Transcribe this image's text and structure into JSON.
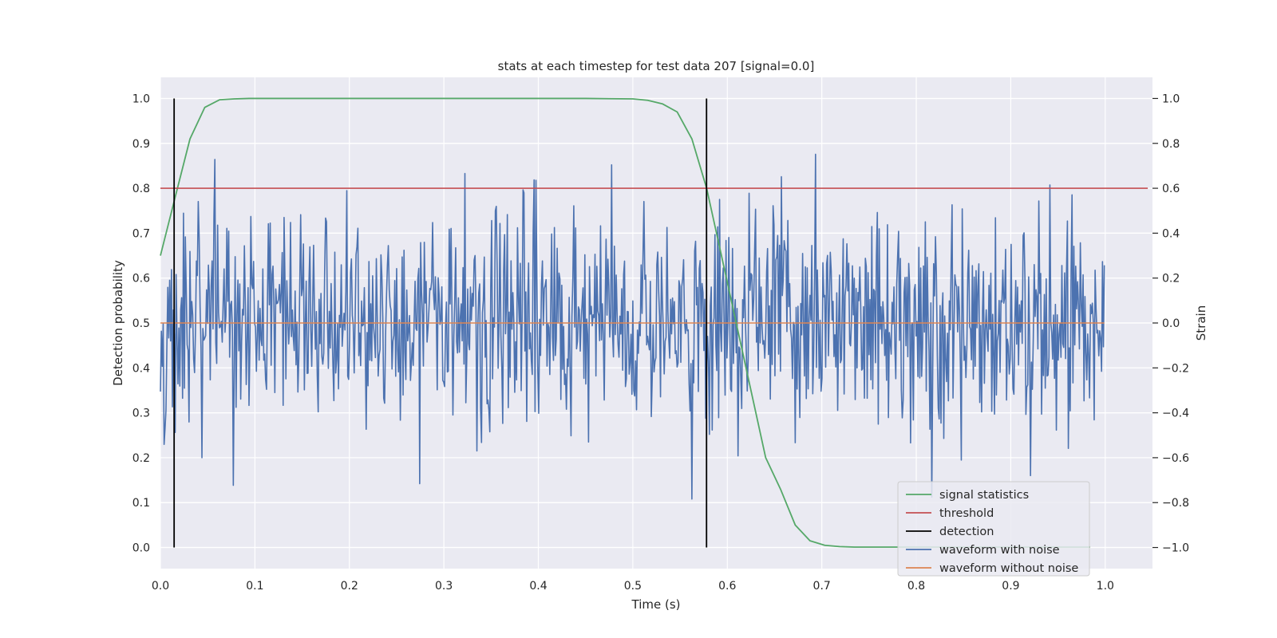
{
  "chart_data": {
    "type": "line",
    "title": "stats at each timestep for test data 207 [signal=0.0]",
    "xlabel": "Time (s)",
    "ylabel": "Detection probability",
    "ylabel_right": "Strain",
    "xlim": [
      0.0,
      1.05
    ],
    "ylim": [
      -0.047,
      1.047
    ],
    "ylim_right": [
      -1.094,
      1.094
    ],
    "xticks": [
      0.0,
      0.1,
      0.2,
      0.3,
      0.4,
      0.5,
      0.6,
      0.7,
      0.8,
      0.9,
      1.0
    ],
    "xtick_labels": [
      "0.0",
      "0.1",
      "0.2",
      "0.3",
      "0.4",
      "0.5",
      "0.6",
      "0.7",
      "0.8",
      "0.9",
      "1.0"
    ],
    "yticks": [
      0.0,
      0.1,
      0.2,
      0.3,
      0.4,
      0.5,
      0.6,
      0.7,
      0.8,
      0.9,
      1.0
    ],
    "ytick_labels": [
      "0.0",
      "0.1",
      "0.2",
      "0.3",
      "0.4",
      "0.5",
      "0.6",
      "0.7",
      "0.8",
      "0.9",
      "1.0"
    ],
    "yticks_right": [
      -1.0,
      -0.8,
      -0.6,
      -0.4,
      -0.2,
      0.0,
      0.2,
      0.4,
      0.6,
      0.8,
      1.0
    ],
    "ytick_labels_right": [
      "−1.0",
      "−0.8",
      "−0.6",
      "−0.4",
      "−0.2",
      "0.0",
      "0.2",
      "0.4",
      "0.6",
      "0.8",
      "1.0"
    ],
    "grid": true,
    "legend_position": "lower-right",
    "colors": {
      "signal": "#55a868",
      "threshold": "#c44e52",
      "detection": "#000000",
      "noisy": "#4c72b0",
      "clean": "#dd8452",
      "background": "#eaeaf2",
      "grid": "#ffffff"
    },
    "series": [
      {
        "name": "signal statistics",
        "axis": "left",
        "x": [
          0.0,
          0.0156,
          0.0313,
          0.0469,
          0.0625,
          0.0781,
          0.0938,
          0.1094,
          0.125,
          0.2,
          0.3,
          0.4,
          0.45,
          0.5,
          0.5156,
          0.5313,
          0.5469,
          0.5625,
          0.5781,
          0.5938,
          0.6094,
          0.625,
          0.6406,
          0.6563,
          0.6719,
          0.6875,
          0.7031,
          0.7188,
          0.7344,
          0.75,
          0.8,
          0.9,
          0.984
        ],
        "values": [
          0.65,
          0.78,
          0.91,
          0.98,
          0.997,
          0.999,
          1.0,
          1.0,
          1.0,
          1.0,
          1.0,
          1.0,
          1.0,
          0.999,
          0.996,
          0.988,
          0.97,
          0.91,
          0.8,
          0.65,
          0.5,
          0.35,
          0.2,
          0.13,
          0.05,
          0.015,
          0.005,
          0.002,
          0.001,
          0.001,
          0.001,
          0.001,
          0.001
        ]
      },
      {
        "name": "threshold",
        "axis": "left",
        "x": [
          0.0,
          1.045
        ],
        "values": [
          0.8,
          0.8
        ]
      },
      {
        "name": "detection",
        "axis": "left",
        "vlines": [
          0.0145,
          0.578
        ],
        "ymin": 0.0,
        "ymax": 1.0
      },
      {
        "name": "waveform with noise",
        "axis": "right",
        "x_range": [
          0.0,
          0.999
        ],
        "sample_rate": 1024,
        "mean": 0.0,
        "std": 0.25,
        "min": -1.0,
        "max": 1.0
      },
      {
        "name": "waveform without noise",
        "axis": "right",
        "x": [
          0.0,
          0.999
        ],
        "values": [
          0.0,
          0.0
        ]
      }
    ]
  }
}
